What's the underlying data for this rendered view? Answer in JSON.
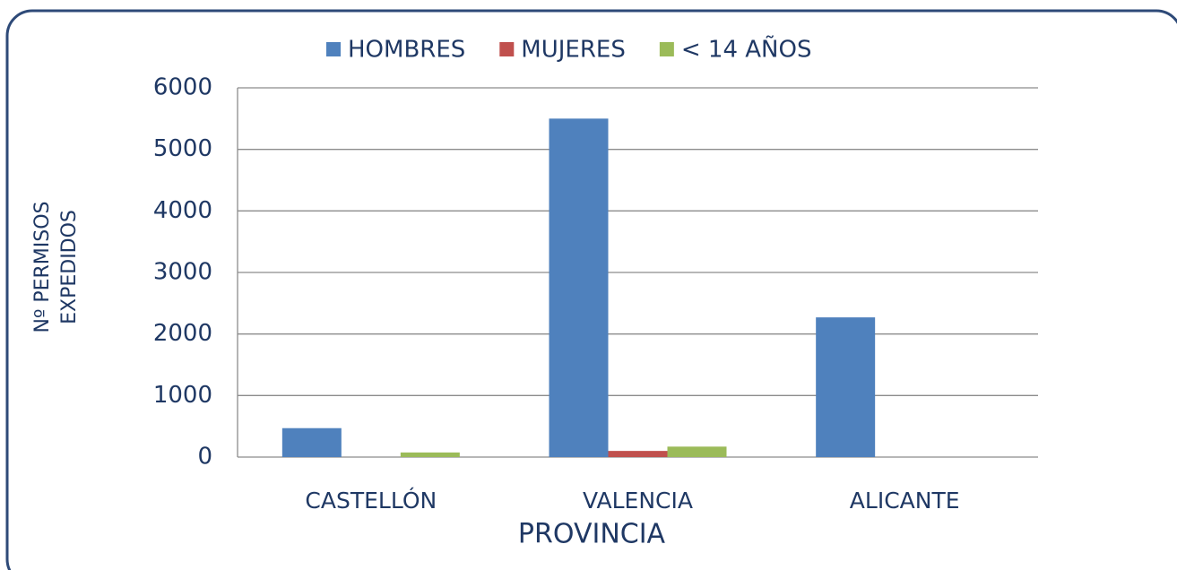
{
  "chart_data": {
    "type": "bar",
    "x_label": "PROVINCIA",
    "y_label": [
      "Nº PERMISOS",
      "EXPEDIDOS"
    ],
    "categories": [
      "CASTELLÓN",
      "VALENCIA",
      "ALICANTE"
    ],
    "series": [
      {
        "name": "HOMBRES",
        "color": "#4f81bd",
        "values": [
          470,
          5500,
          2270
        ]
      },
      {
        "name": "MUJERES",
        "color": "#c0504d",
        "values": [
          0,
          100,
          0
        ]
      },
      {
        "name": "< 14 AÑOS",
        "color": "#9bbb59",
        "values": [
          75,
          170,
          0
        ]
      }
    ],
    "ylim": [
      0,
      6000
    ],
    "yticks": [
      0,
      1000,
      2000,
      3000,
      4000,
      5000,
      6000
    ],
    "grid": true,
    "legend": "top"
  }
}
